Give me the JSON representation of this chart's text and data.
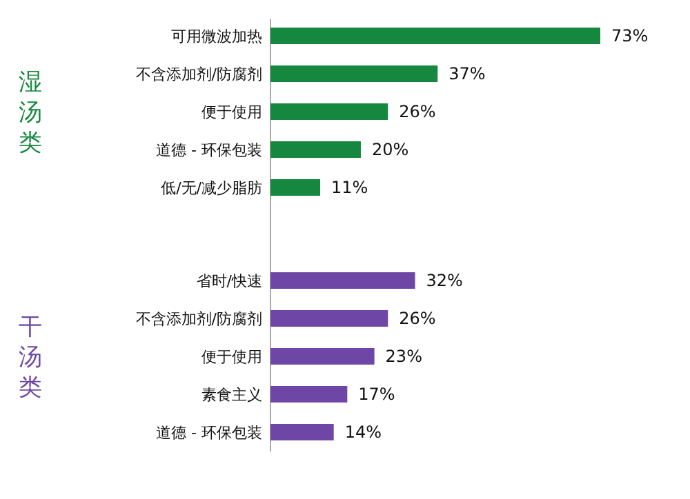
{
  "chart_data": {
    "type": "bar",
    "orientation": "horizontal",
    "categories": [
      "可用微波加热",
      "不含添加剂/防腐剂",
      "便于使用",
      "道德 - 环保包装",
      "低/无/减少脂肪",
      "省时/快速",
      "不含添加剂/防腐剂",
      "便于使用",
      "素食主义",
      "道德 - 环保包装"
    ],
    "series": [
      {
        "name": "湿汤类",
        "color": "#16873f",
        "values": [
          73,
          37,
          26,
          20,
          11,
          null,
          null,
          null,
          null,
          null
        ],
        "value_labels": [
          "73%",
          "37%",
          "26%",
          "20%",
          "11%",
          null,
          null,
          null,
          null,
          null
        ]
      },
      {
        "name": "干汤类",
        "color": "#6e46a6",
        "values": [
          null,
          null,
          null,
          null,
          null,
          32,
          26,
          23,
          17,
          14
        ],
        "value_labels": [
          null,
          null,
          null,
          null,
          null,
          "32%",
          "26%",
          "23%",
          "17%",
          "14%"
        ]
      }
    ]
  }
}
